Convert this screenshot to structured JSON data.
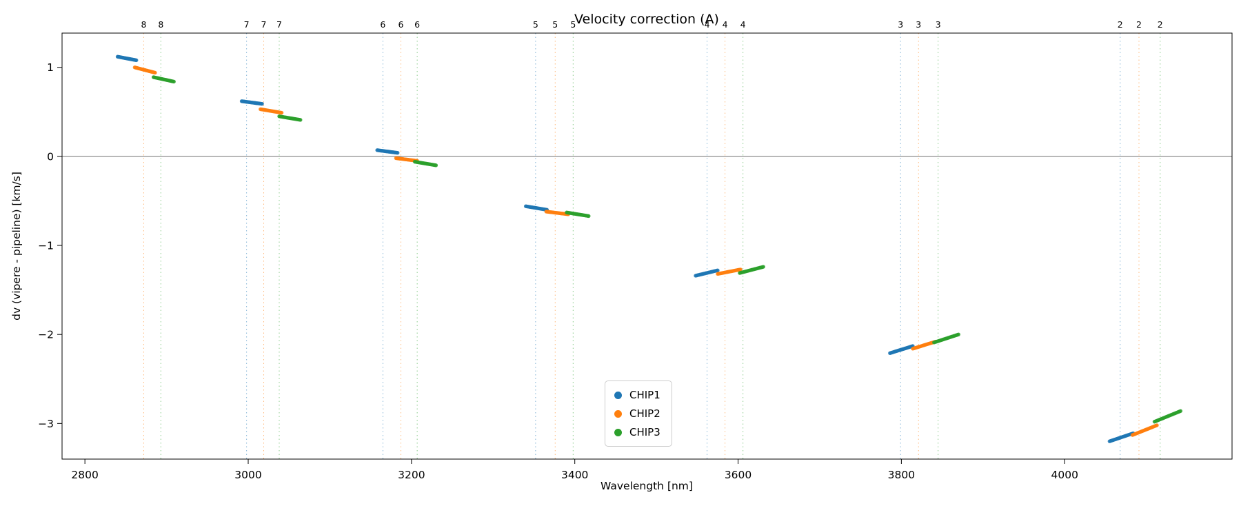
{
  "chart_data": {
    "type": "scatter",
    "title": "Velocity correction (A)",
    "xlabel": "Wavelength [nm]",
    "ylabel": "dv (vipere - pipeline) [km/s]",
    "xlim": [
      2772,
      4205
    ],
    "ylim": [
      -3.4,
      1.385
    ],
    "xticks": [
      2800,
      3000,
      3200,
      3400,
      3600,
      3800,
      4000
    ],
    "yticks": [
      1,
      0,
      -1,
      -2,
      -3
    ],
    "zero_line": {
      "y": 0,
      "color": "#8c8c8c"
    },
    "grid": false,
    "legend": {
      "position": "lower-center",
      "entries": [
        {
          "label": "CHIP1",
          "color": "#1f77b4"
        },
        {
          "label": "CHIP2",
          "color": "#ff7f0e"
        },
        {
          "label": "CHIP3",
          "color": "#2ca02c"
        }
      ]
    },
    "order_markers": [
      {
        "order": "8",
        "chip": "CHIP2",
        "x": 2872
      },
      {
        "order": "8",
        "chip": "CHIP3",
        "x": 2893
      },
      {
        "order": "7",
        "chip": "CHIP1",
        "x": 2998
      },
      {
        "order": "7",
        "chip": "CHIP2",
        "x": 3019
      },
      {
        "order": "7",
        "chip": "CHIP3",
        "x": 3038
      },
      {
        "order": "6",
        "chip": "CHIP1",
        "x": 3165
      },
      {
        "order": "6",
        "chip": "CHIP2",
        "x": 3187
      },
      {
        "order": "6",
        "chip": "CHIP3",
        "x": 3207
      },
      {
        "order": "5",
        "chip": "CHIP1",
        "x": 3352
      },
      {
        "order": "5",
        "chip": "CHIP2",
        "x": 3376
      },
      {
        "order": "5",
        "chip": "CHIP3",
        "x": 3398
      },
      {
        "order": "4",
        "chip": "CHIP1",
        "x": 3562
      },
      {
        "order": "4",
        "chip": "CHIP2",
        "x": 3584
      },
      {
        "order": "4",
        "chip": "CHIP3",
        "x": 3606
      },
      {
        "order": "3",
        "chip": "CHIP1",
        "x": 3799
      },
      {
        "order": "3",
        "chip": "CHIP2",
        "x": 3821
      },
      {
        "order": "3",
        "chip": "CHIP3",
        "x": 3845
      },
      {
        "order": "2",
        "chip": "CHIP1",
        "x": 4068
      },
      {
        "order": "2",
        "chip": "CHIP2",
        "x": 4091
      },
      {
        "order": "2",
        "chip": "CHIP3",
        "x": 4117
      }
    ],
    "segments": [
      {
        "chip": "CHIP1",
        "order": "8",
        "x0": 2840,
        "x1": 2863,
        "y0": 1.12,
        "y1": 1.08
      },
      {
        "chip": "CHIP2",
        "order": "8",
        "x0": 2861,
        "x1": 2886,
        "y0": 1.0,
        "y1": 0.94
      },
      {
        "chip": "CHIP3",
        "order": "8",
        "x0": 2884,
        "x1": 2909,
        "y0": 0.89,
        "y1": 0.84
      },
      {
        "chip": "CHIP1",
        "order": "7",
        "x0": 2992,
        "x1": 3017,
        "y0": 0.62,
        "y1": 0.59
      },
      {
        "chip": "CHIP2",
        "order": "7",
        "x0": 3015,
        "x1": 3041,
        "y0": 0.53,
        "y1": 0.49
      },
      {
        "chip": "CHIP3",
        "order": "7",
        "x0": 3038,
        "x1": 3064,
        "y0": 0.45,
        "y1": 0.41
      },
      {
        "chip": "CHIP1",
        "order": "6",
        "x0": 3158,
        "x1": 3183,
        "y0": 0.07,
        "y1": 0.04
      },
      {
        "chip": "CHIP2",
        "order": "6",
        "x0": 3181,
        "x1": 3207,
        "y0": -0.02,
        "y1": -0.05
      },
      {
        "chip": "CHIP3",
        "order": "6",
        "x0": 3204,
        "x1": 3230,
        "y0": -0.06,
        "y1": -0.1
      },
      {
        "chip": "CHIP1",
        "order": "5",
        "x0": 3340,
        "x1": 3366,
        "y0": -0.56,
        "y1": -0.6
      },
      {
        "chip": "CHIP2",
        "order": "5",
        "x0": 3365,
        "x1": 3392,
        "y0": -0.62,
        "y1": -0.65
      },
      {
        "chip": "CHIP3",
        "order": "5",
        "x0": 3390,
        "x1": 3417,
        "y0": -0.63,
        "y1": -0.67
      },
      {
        "chip": "CHIP1",
        "order": "4",
        "x0": 3548,
        "x1": 3575,
        "y0": -1.34,
        "y1": -1.28
      },
      {
        "chip": "CHIP2",
        "order": "4",
        "x0": 3575,
        "x1": 3603,
        "y0": -1.32,
        "y1": -1.27
      },
      {
        "chip": "CHIP3",
        "order": "4",
        "x0": 3602,
        "x1": 3631,
        "y0": -1.31,
        "y1": -1.24
      },
      {
        "chip": "CHIP1",
        "order": "3",
        "x0": 3786,
        "x1": 3814,
        "y0": -2.21,
        "y1": -2.13
      },
      {
        "chip": "CHIP2",
        "order": "3",
        "x0": 3814,
        "x1": 3842,
        "y0": -2.16,
        "y1": -2.08
      },
      {
        "chip": "CHIP3",
        "order": "3",
        "x0": 3840,
        "x1": 3870,
        "y0": -2.09,
        "y1": -2.0
      },
      {
        "chip": "CHIP1",
        "order": "2",
        "x0": 4055,
        "x1": 4084,
        "y0": -3.2,
        "y1": -3.11
      },
      {
        "chip": "CHIP2",
        "order": "2",
        "x0": 4083,
        "x1": 4113,
        "y0": -3.13,
        "y1": -3.02
      },
      {
        "chip": "CHIP3",
        "order": "2",
        "x0": 4110,
        "x1": 4142,
        "y0": -2.98,
        "y1": -2.86
      }
    ]
  }
}
